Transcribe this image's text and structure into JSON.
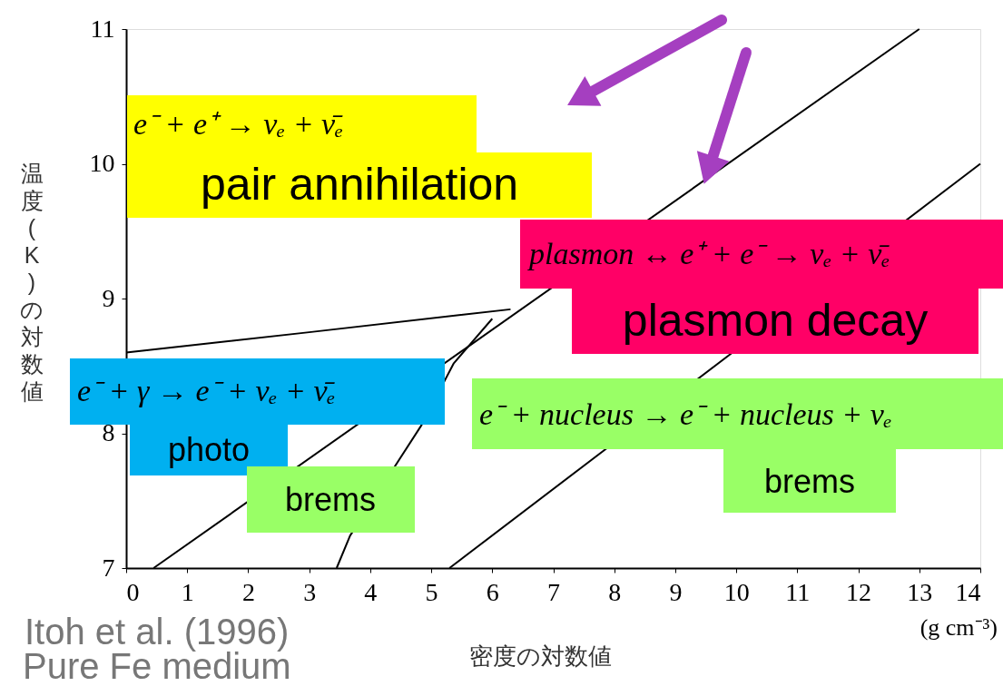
{
  "chart_data": {
    "type": "line",
    "xlabel": "密度の対数値",
    "ylabel": "温度(K)の対数値",
    "annotations": [
      "e⁻ + e⁺ → νₑ + ν̄ₑ",
      "pair annihilation",
      "plasmon ↔ e⁺ + e⁻ → νₑ + ν̄ₑ",
      "plasmon decay",
      "e⁻ + γ → e⁻ + νₑ + ν̄ₑ",
      "photo",
      "e⁻ + nucleus → e⁻ + nucleus + νₑ",
      "brems",
      "brems",
      "Itoh et al. (1996)",
      "Pure Fe medium",
      "(g cm⁻³)"
    ],
    "series": [
      {
        "color": "#000000",
        "x": [
          0,
          3,
          6.3
        ],
        "values": [
          8.6,
          8.75,
          8.92
        ]
      },
      {
        "color": "#000000",
        "x": [
          0.45,
          13
        ],
        "values": [
          7,
          11
        ]
      },
      {
        "color": "#000000",
        "x": [
          5.3,
          14
        ],
        "values": [
          7,
          10
        ]
      },
      {
        "color": "#000000",
        "x": [
          3.45,
          3.67,
          4.84,
          5.37,
          6.0
        ],
        "values": [
          7,
          7.24,
          8.06,
          8.52,
          8.85
        ]
      }
    ],
    "xlim": [
      0,
      14
    ],
    "xticks": [
      0,
      1,
      2,
      3,
      4,
      5,
      6,
      7,
      8,
      9,
      10,
      11,
      12,
      13,
      14
    ],
    "ylim": [
      7,
      11
    ],
    "yticks": [
      7,
      8,
      9,
      10,
      11
    ],
    "grid": false,
    "legend": false,
    "marker": "none",
    "line_style": "solid"
  }
}
